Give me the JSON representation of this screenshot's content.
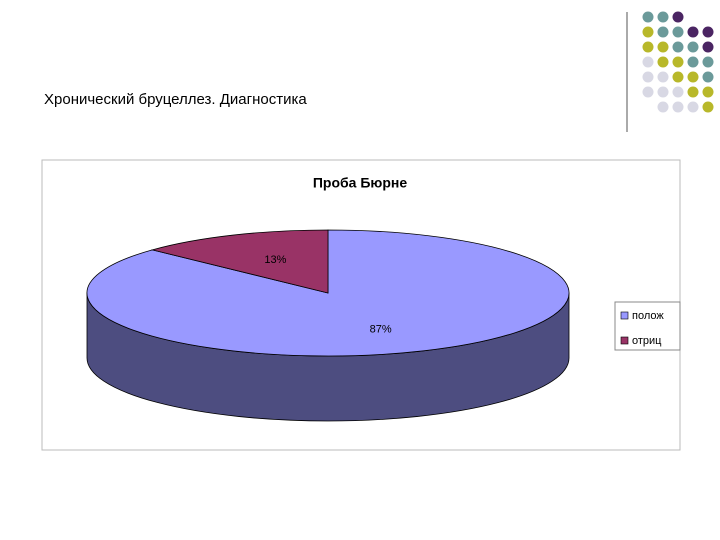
{
  "slide": {
    "title": "Хронический бруцеллез. Диагностика"
  },
  "chart_data": {
    "type": "pie",
    "title": "Проба Бюрне",
    "categories": [
      "полож",
      "отриц"
    ],
    "values": [
      87,
      13
    ],
    "value_labels": [
      "87%",
      "13%"
    ],
    "colors": [
      "#9999ff",
      "#993366"
    ],
    "legend": "right"
  }
}
